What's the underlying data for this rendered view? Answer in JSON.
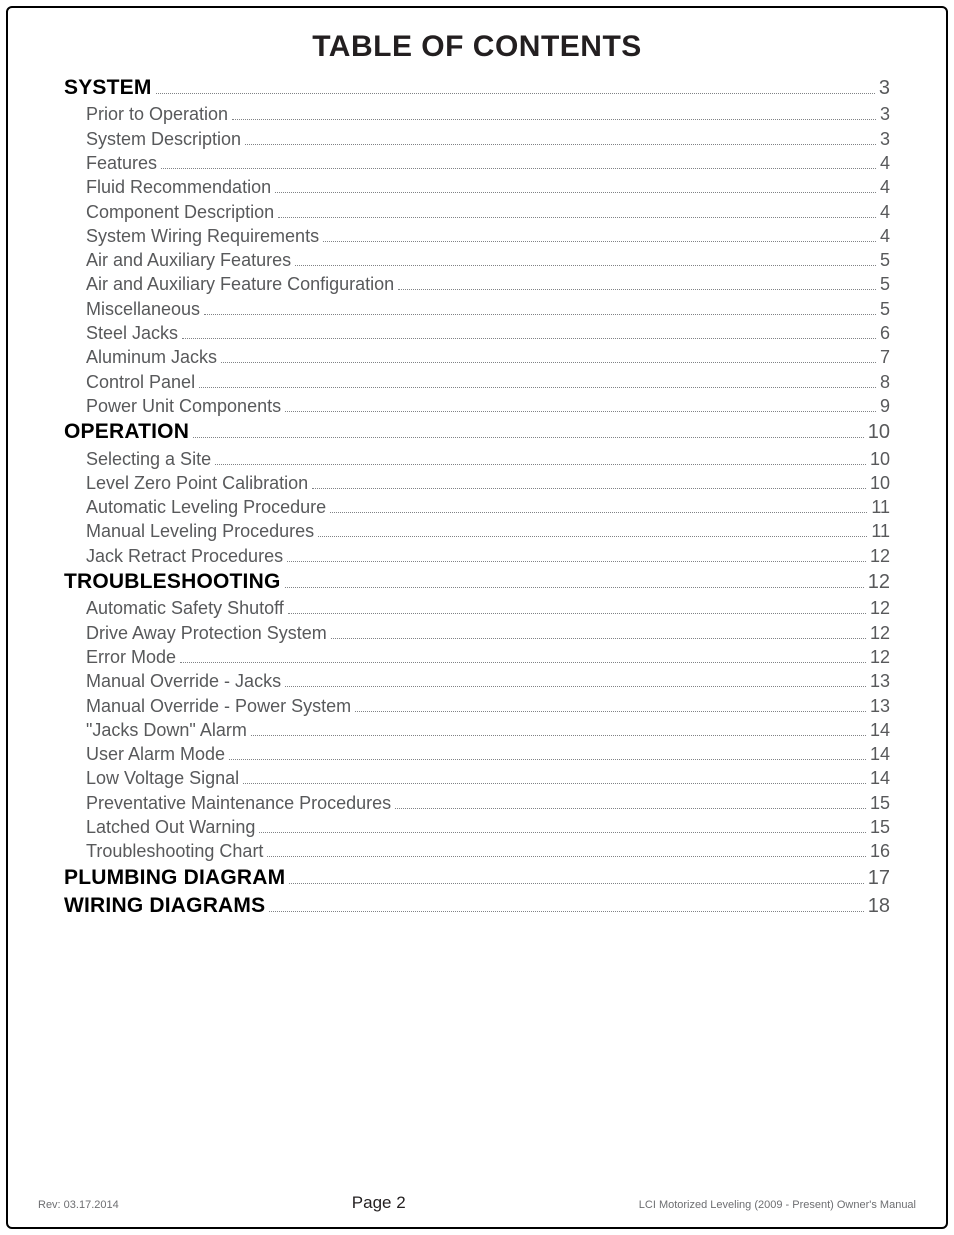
{
  "title": "TABLE OF CONTENTS",
  "toc": [
    {
      "level": "section",
      "label": "SYSTEM",
      "page": "3"
    },
    {
      "level": "sub",
      "label": "Prior to Operation",
      "page": "3"
    },
    {
      "level": "sub",
      "label": "System Description",
      "page": "3"
    },
    {
      "level": "sub",
      "label": "Features",
      "page": "4"
    },
    {
      "level": "sub",
      "label": "Fluid Recommendation",
      "page": "4"
    },
    {
      "level": "sub",
      "label": "Component Description",
      "page": "4"
    },
    {
      "level": "sub",
      "label": "System Wiring Requirements",
      "page": "4"
    },
    {
      "level": "sub",
      "label": "Air and Auxiliary Features",
      "page": "5"
    },
    {
      "level": "sub",
      "label": "Air and Auxiliary Feature Configuration",
      "page": "5"
    },
    {
      "level": "sub",
      "label": "Miscellaneous",
      "page": "5"
    },
    {
      "level": "sub",
      "label": "Steel Jacks",
      "page": "6"
    },
    {
      "level": "sub",
      "label": "Aluminum Jacks",
      "page": "7"
    },
    {
      "level": "sub",
      "label": "Control Panel",
      "page": "8"
    },
    {
      "level": "sub",
      "label": "Power Unit Components",
      "page": "9"
    },
    {
      "level": "section",
      "label": "OPERATION",
      "page": "10"
    },
    {
      "level": "sub",
      "label": "Selecting a Site",
      "page": "10"
    },
    {
      "level": "sub",
      "label": "Level Zero Point Calibration",
      "page": "10"
    },
    {
      "level": "sub",
      "label": "Automatic Leveling Procedure",
      "page": "11"
    },
    {
      "level": "sub",
      "label": "Manual Leveling Procedures",
      "page": "11"
    },
    {
      "level": "sub",
      "label": "Jack Retract Procedures",
      "page": "12"
    },
    {
      "level": "section",
      "label": "TROUBLESHOOTING",
      "page": "12"
    },
    {
      "level": "sub",
      "label": "Automatic Safety Shutoff",
      "page": "12"
    },
    {
      "level": "sub",
      "label": "Drive Away Protection System",
      "page": "12"
    },
    {
      "level": "sub",
      "label": "Error Mode",
      "page": "12"
    },
    {
      "level": "sub",
      "label": "Manual Override - Jacks",
      "page": "13"
    },
    {
      "level": "sub",
      "label": "Manual Override - Power System",
      "page": "13"
    },
    {
      "level": "sub",
      "label": "\"Jacks Down\" Alarm",
      "page": "14"
    },
    {
      "level": "sub",
      "label": "User Alarm Mode",
      "page": "14"
    },
    {
      "level": "sub",
      "label": "Low Voltage Signal",
      "page": "14"
    },
    {
      "level": "sub",
      "label": "Preventative Maintenance Procedures",
      "page": "15"
    },
    {
      "level": "sub",
      "label": "Latched Out Warning",
      "page": "15"
    },
    {
      "level": "sub",
      "label": "Troubleshooting Chart",
      "page": "16"
    },
    {
      "level": "section",
      "label": "PLUMBING DIAGRAM",
      "page": "17"
    },
    {
      "level": "section",
      "label": "WIRING DIAGRAMS",
      "page": "18"
    }
  ],
  "footer": {
    "left": "Rev: 03.17.2014",
    "center_prefix": "Page ",
    "center_page": "2",
    "right": "LCI Motorized Leveling (2009 - Present) Owner's Manual"
  }
}
